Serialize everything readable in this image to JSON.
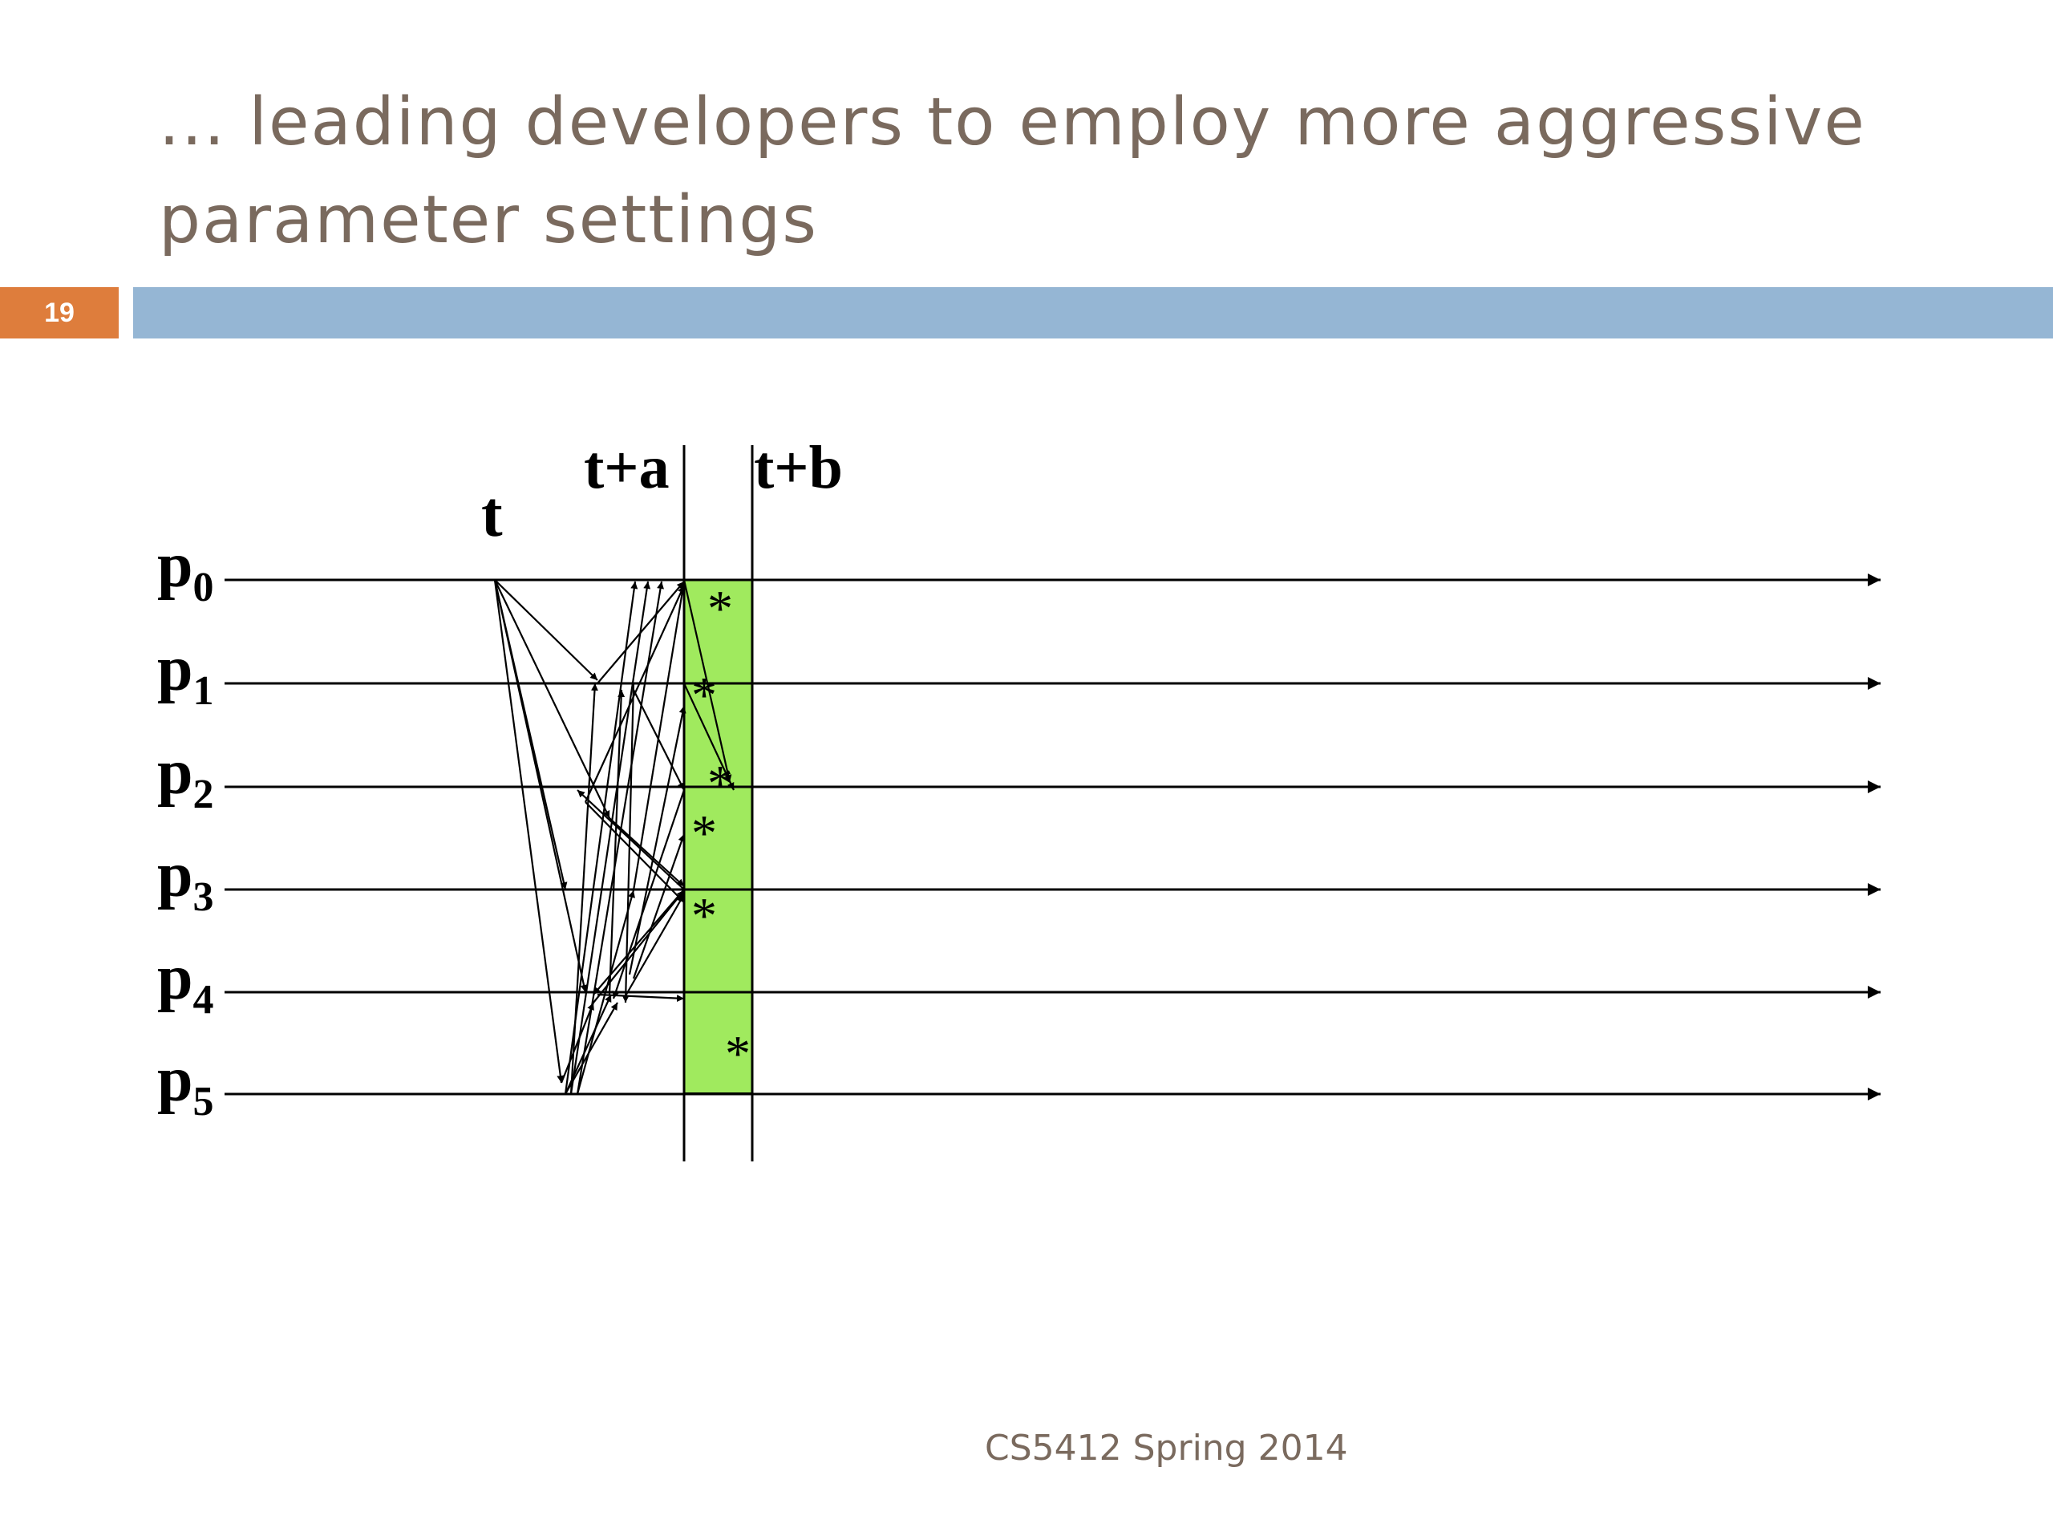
{
  "slide": {
    "title_line1": "... leading developers to employ more aggressive",
    "title_line2": "parameter settings",
    "slide_number": "19",
    "footer": "CS5412 Spring 2014"
  },
  "diagram": {
    "time_labels": {
      "t": "t",
      "t_plus_a": "t+a",
      "t_plus_b": "t+b"
    },
    "processes": [
      {
        "base": "p",
        "sub": "0"
      },
      {
        "base": "p",
        "sub": "1"
      },
      {
        "base": "p",
        "sub": "2"
      },
      {
        "base": "p",
        "sub": "3"
      },
      {
        "base": "p",
        "sub": "4"
      },
      {
        "base": "p",
        "sub": "5"
      }
    ],
    "marker_symbol": "*",
    "colors": {
      "highlight": "#a0ea5e",
      "lines": "#000000"
    }
  }
}
